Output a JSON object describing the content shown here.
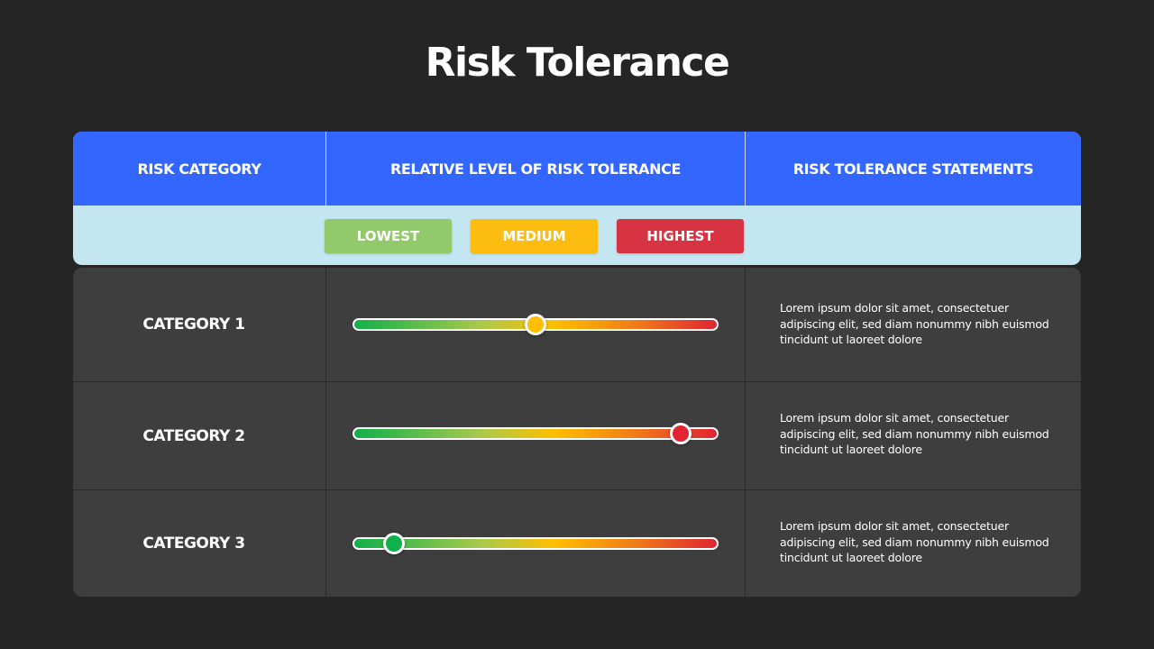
{
  "title": "Risk Tolerance",
  "header": {
    "col1": "RISK CATEGORY",
    "col2": "RELATIVE LEVEL OF RISK TOLERANCE",
    "col3": "RISK TOLERANCE STATEMENTS"
  },
  "legend": [
    {
      "label": "LOWEST",
      "color": "#92c96a"
    },
    {
      "label": "MEDIUM",
      "color": "#fdbd10"
    },
    {
      "label": "HIGHEST",
      "color": "#d73443"
    }
  ],
  "colors": {
    "header_blue": "#3366ff",
    "legend_band": "#c3e6f0",
    "body_panel": "#3e3e3e",
    "background": "#252525"
  },
  "rows": [
    {
      "category": "CATEGORY 1",
      "level": 0.5,
      "knob_color": "#ffbf00",
      "statement": "Lorem ipsum dolor sit amet, consectetuer adipiscing elit, sed diam nonummy nibh euismod tincidunt ut laoreet dolore"
    },
    {
      "category": "CATEGORY 2",
      "level": 0.9,
      "knob_color": "#e02433",
      "statement": "Lorem ipsum dolor sit amet, consectetuer adipiscing elit, sed diam nonummy nibh euismod tincidunt ut laoreet dolore"
    },
    {
      "category": "CATEGORY 3",
      "level": 0.11,
      "knob_color": "#10b04a",
      "statement": "Lorem ipsum dolor sit amet, consectetuer adipiscing elit, sed diam nonummy nibh euismod tincidunt ut laoreet dolore"
    }
  ]
}
